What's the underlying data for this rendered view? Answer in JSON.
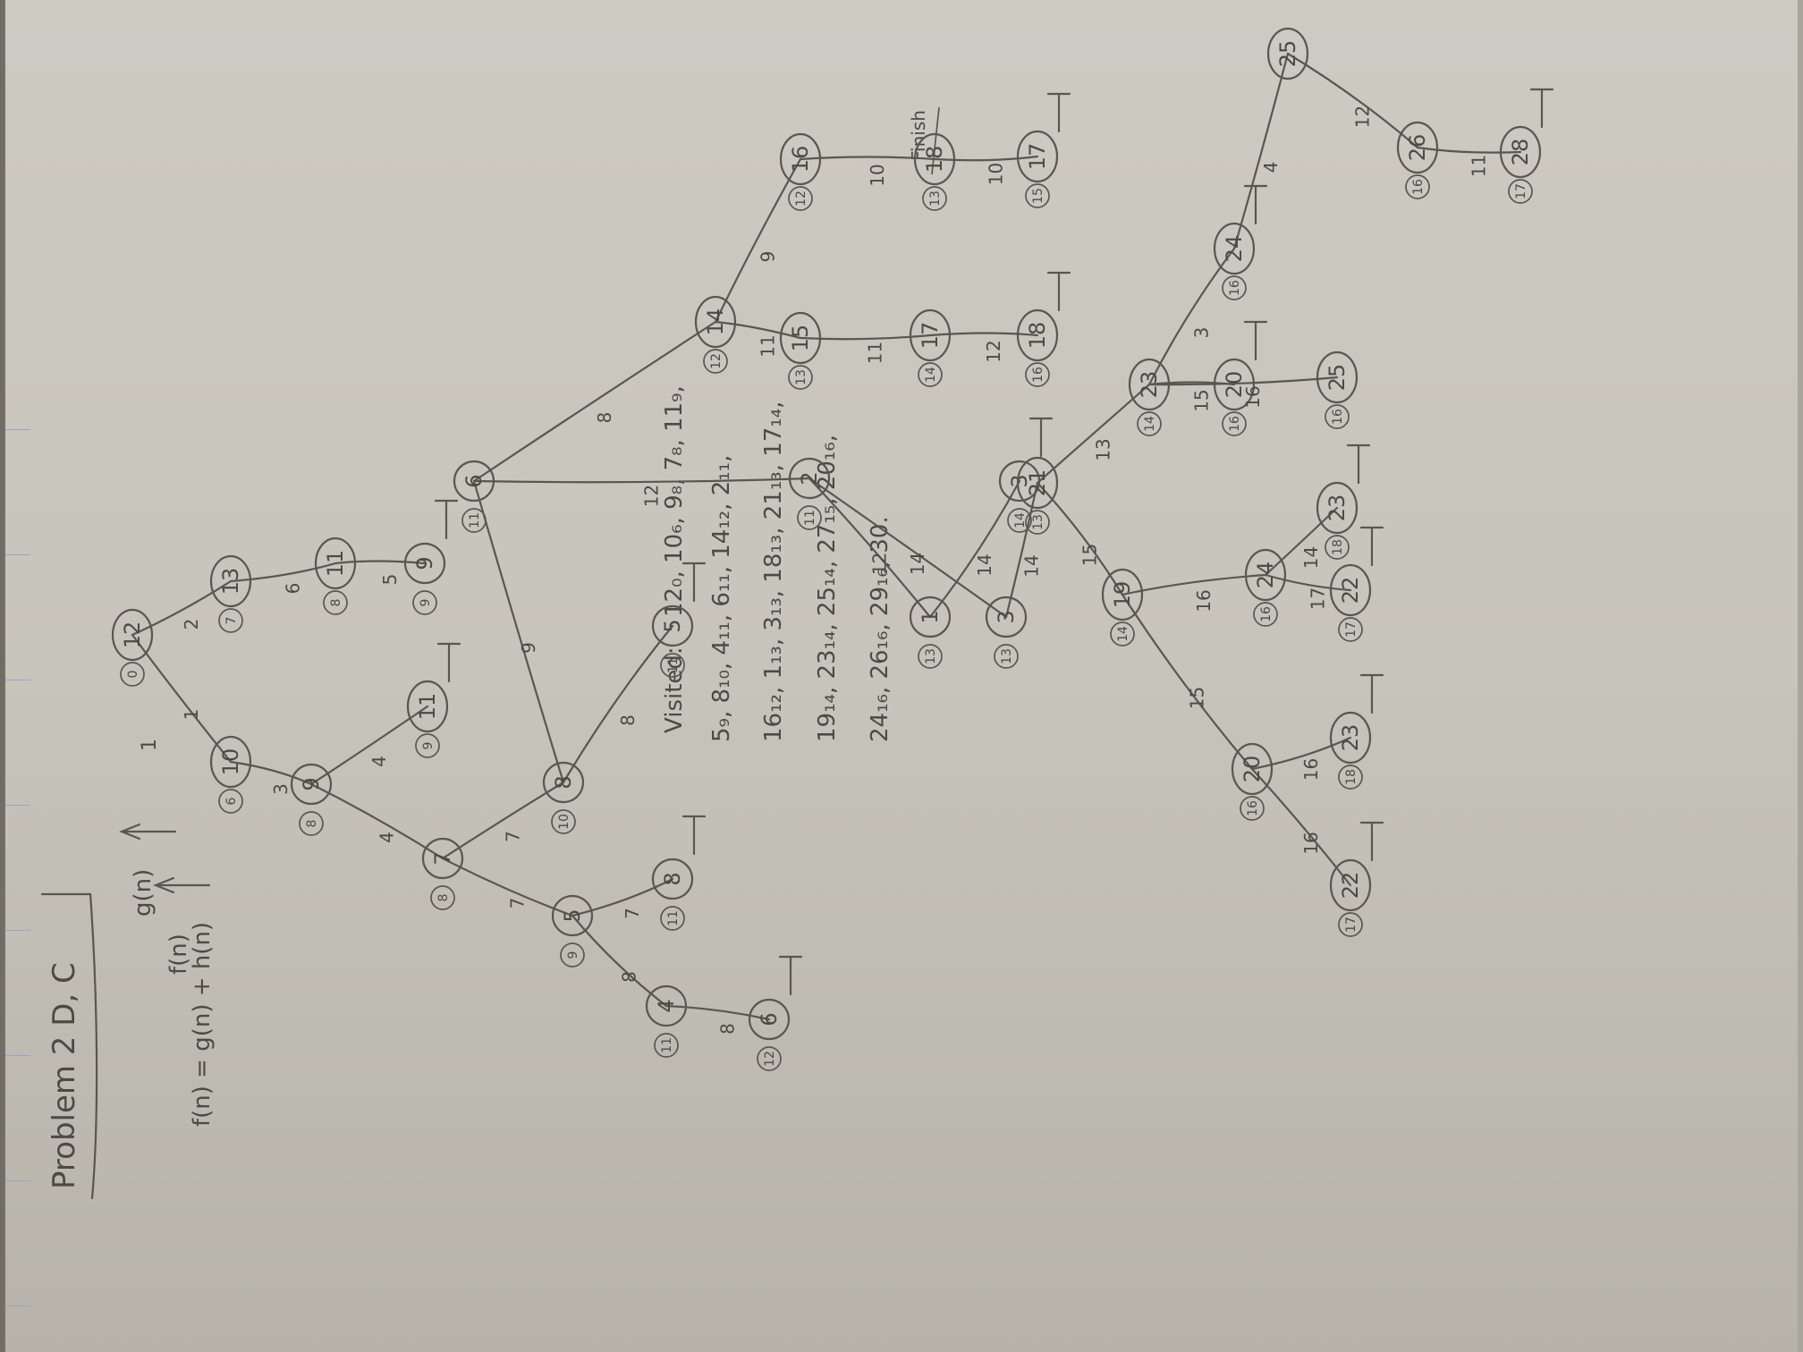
{
  "title": "Problem 2 D, C",
  "formula": "f(n) = g(n) + h(n)",
  "legend": {
    "g": "g(n)",
    "f": "f(n)",
    "g_val": "1",
    "f_val": ""
  },
  "visited_label": "Visited:",
  "visited_lines": [
    "12₀, 10₆, 9₈, 7₈, 11₉,",
    "5₉, 8₁₀, 4₁₁, 6₁₁, 14₁₂, 2₁₁,",
    "16₁₂, 1₁₃, 3₁₃, 18₁₃, 21₁₃, 17₁₄,",
    "19₁₄, 23₁₄, 25₁₄, 27₁₅, 20₁₆,",
    "24₁₆, 26₁₆, 29₁₆, 30."
  ],
  "finish_label": "Finish",
  "tree_nodes": [
    {
      "label": "12",
      "f": "0"
    },
    {
      "label": "10",
      "f": "6"
    },
    {
      "label": "13",
      "f": "7"
    },
    {
      "label": "9",
      "f": "8"
    },
    {
      "label": "11",
      "f": "9"
    },
    {
      "label": "11",
      "f": "8"
    },
    {
      "label": "9",
      "f": "9"
    },
    {
      "label": "7",
      "f": "8"
    },
    {
      "label": "5",
      "f": "9"
    },
    {
      "label": "8",
      "f": "10"
    },
    {
      "label": "4",
      "f": "11"
    },
    {
      "label": "6",
      "f": "12"
    },
    {
      "label": "8",
      "f": "11"
    },
    {
      "label": "5",
      "f": "11"
    },
    {
      "label": "6",
      "f": "11"
    },
    {
      "label": "14",
      "f": "12"
    },
    {
      "label": "16",
      "f": "12"
    },
    {
      "label": "15",
      "f": "13"
    },
    {
      "label": "18",
      "f": "13"
    },
    {
      "label": "17",
      "f": "15"
    },
    {
      "label": "2",
      "f": "11"
    },
    {
      "label": "1",
      "f": "13"
    },
    {
      "label": "3",
      "f": "13"
    },
    {
      "label": "3",
      "f": "14"
    },
    {
      "label": "17",
      "f": "14"
    },
    {
      "label": "21",
      "f": "13"
    },
    {
      "label": "18",
      "f": "16"
    },
    {
      "label": "19",
      "f": "14"
    },
    {
      "label": "20",
      "f": "16"
    },
    {
      "label": "22",
      "f": "17"
    },
    {
      "label": "23",
      "f": "18"
    },
    {
      "label": "24",
      "f": "16"
    },
    {
      "label": "22",
      "f": "17"
    },
    {
      "label": "23",
      "f": "18"
    },
    {
      "label": "23",
      "f": "14"
    },
    {
      "label": "20",
      "f": "16"
    },
    {
      "label": "25",
      "f": "16"
    },
    {
      "label": "24",
      "f": "16"
    },
    {
      "label": "25",
      "f": ""
    },
    {
      "label": "26",
      "f": "16"
    },
    {
      "label": "28",
      "f": "17"
    }
  ],
  "edge_labels": [
    "1",
    "2",
    "3",
    "4",
    "4",
    "6",
    "5",
    "7",
    "7",
    "8",
    "8",
    "7",
    "8",
    "9",
    "8",
    "9",
    "10",
    "10",
    "11",
    "11",
    "12",
    "12",
    "12",
    "14",
    "14",
    "14",
    "15",
    "15",
    "16",
    "16",
    "16",
    "17",
    "14",
    "13",
    "15",
    "16",
    "3",
    "4",
    "12",
    "11",
    "11"
  ]
}
